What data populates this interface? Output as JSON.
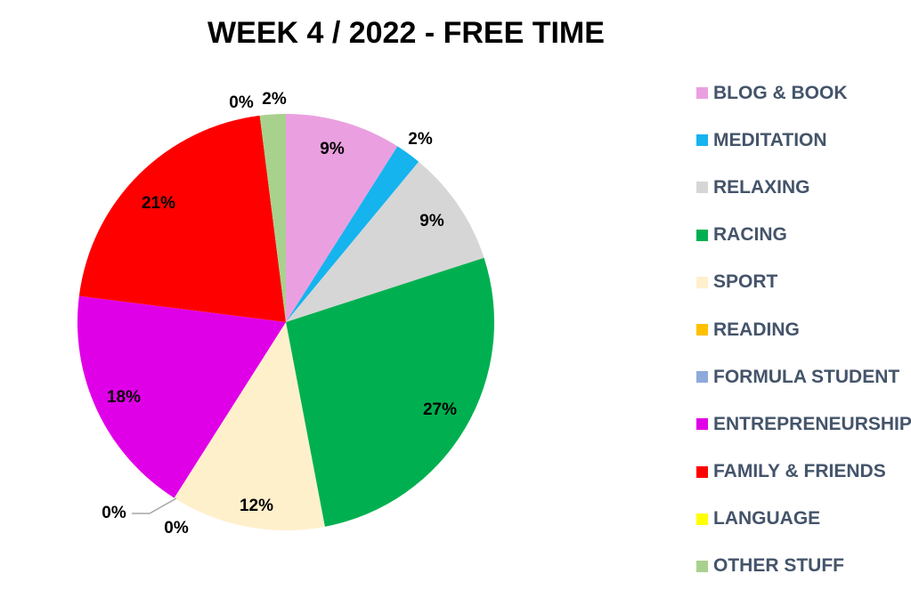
{
  "chart_data": {
    "type": "pie",
    "title": "WEEK 4 / 2022 - FREE TIME",
    "legend_position": "right",
    "categories": [
      "BLOG & BOOK",
      "MEDITATION",
      "RELAXING",
      "RACING",
      "SPORT",
      "READING",
      "FORMULA STUDENT",
      "ENTREPRENEURSHIP",
      "FAMILY & FRIENDS",
      "LANGUAGE",
      "OTHER STUFF"
    ],
    "values": [
      9,
      2,
      9,
      27,
      12,
      0,
      0,
      18,
      21,
      0,
      2
    ],
    "data_labels": [
      "9%",
      "2%",
      "9%",
      "27%",
      "12%",
      "0%",
      "0%",
      "18%",
      "21%",
      "0%",
      "2%"
    ],
    "colors": [
      "#eaa0e0",
      "#15b4ee",
      "#d6d6d6",
      "#00b050",
      "#fff0cc",
      "#ffc000",
      "#8eaadb",
      "#e000e8",
      "#ff0000",
      "#ffff00",
      "#a9d18e"
    ]
  }
}
